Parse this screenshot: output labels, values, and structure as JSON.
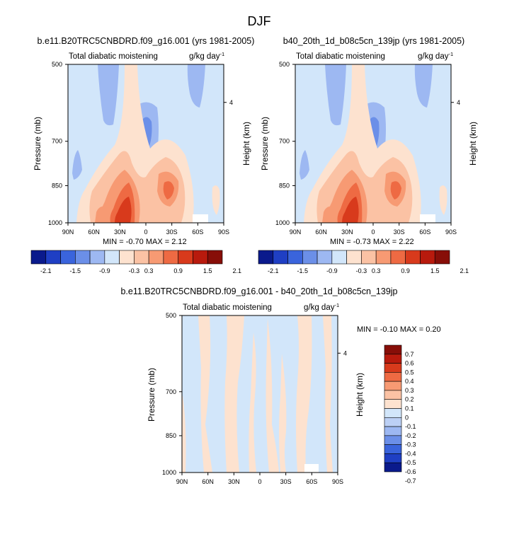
{
  "title": "DJF",
  "panels": [
    {
      "title": "b.e11.B20TRC5CNBDRD.f09_g16.001 (yrs 1981-2005)",
      "left_label": "Total diabatic moistening",
      "right_label": "g/kg day",
      "right_label_exp": "-1",
      "stats": "MIN = -0.70  MAX =  2.12"
    },
    {
      "title": "b40_20th_1d_b08c5cn_139jp (yrs 1981-2005)",
      "left_label": "Total diabatic moistening",
      "right_label": "g/kg day",
      "right_label_exp": "-1",
      "stats": "MIN = -0.73  MAX =  2.22"
    },
    {
      "title": "b.e11.B20TRC5CNBDRD.f09_g16.001 - b40_20th_1d_b08c5cn_139jp",
      "left_label": "Total diabatic moistening",
      "right_label": "g/kg day",
      "right_label_exp": "-1",
      "stats": "MIN = -0.10  MAX =  0.20"
    }
  ],
  "colors": {
    "main_levels": [
      "#0a1a8c",
      "#1f3fc4",
      "#3a64dc",
      "#6b8fe8",
      "#9db8f2",
      "#d2e6fa",
      "#fde2cf",
      "#fbc2a4",
      "#f79a73",
      "#ee6a43",
      "#d83a1c",
      "#b81a0d",
      "#870e08"
    ],
    "diff_levels": [
      "#0a1a8c",
      "#1f3fc4",
      "#3a64dc",
      "#6b8fe8",
      "#9db8f2",
      "#bcd0f5",
      "#d2e6fa",
      "#fde2cf",
      "#fbc2a4",
      "#f79a73",
      "#ee6a43",
      "#d83a1c",
      "#b81a0d",
      "#870e08"
    ],
    "background": "#d2e6fa"
  },
  "chart_data": [
    {
      "type": "heatmap",
      "title": "b.e11.B20TRC5CNBDRD.f09_g16.001 (yrs 1981-2005)",
      "xlabel": "",
      "ylabel": "Pressure (mb)",
      "y2label": "Height (km)",
      "xticks": [
        "90N",
        "60N",
        "30N",
        "0",
        "30S",
        "60S",
        "90S"
      ],
      "yticks": [
        "500",
        "700",
        "850",
        "1000"
      ],
      "y2ticks": [
        "4"
      ],
      "colorbar": [
        "-2.1",
        "-1.5",
        "-0.9",
        "-0.3",
        "0.3",
        "0.9",
        "1.5",
        "2.1"
      ],
      "min": -0.7,
      "max": 2.12
    },
    {
      "type": "heatmap",
      "title": "b40_20th_1d_b08c5cn_139jp (yrs 1981-2005)",
      "xlabel": "",
      "ylabel": "Pressure (mb)",
      "y2label": "Height (km)",
      "xticks": [
        "90N",
        "60N",
        "30N",
        "0",
        "30S",
        "60S",
        "90S"
      ],
      "yticks": [
        "500",
        "700",
        "850",
        "1000"
      ],
      "y2ticks": [
        "4"
      ],
      "colorbar": [
        "-2.1",
        "-1.5",
        "-0.9",
        "-0.3",
        "0.3",
        "0.9",
        "1.5",
        "2.1"
      ],
      "min": -0.73,
      "max": 2.22
    },
    {
      "type": "heatmap",
      "title": "b.e11.B20TRC5CNBDRD.f09_g16.001 - b40_20th_1d_b08c5cn_139jp",
      "xlabel": "",
      "ylabel": "Pressure (mb)",
      "y2label": "Height (km)",
      "xticks": [
        "90N",
        "60N",
        "30N",
        "0",
        "30S",
        "60S",
        "90S"
      ],
      "yticks": [
        "500",
        "700",
        "850",
        "1000"
      ],
      "y2ticks": [
        "4"
      ],
      "colorbar": [
        "0.7",
        "0.6",
        "0.5",
        "0.4",
        "0.3",
        "0.2",
        "0.1",
        "0",
        "-0.1",
        "-0.2",
        "-0.3",
        "-0.4",
        "-0.5",
        "-0.6",
        "-0.7"
      ],
      "min": -0.1,
      "max": 0.2
    }
  ]
}
